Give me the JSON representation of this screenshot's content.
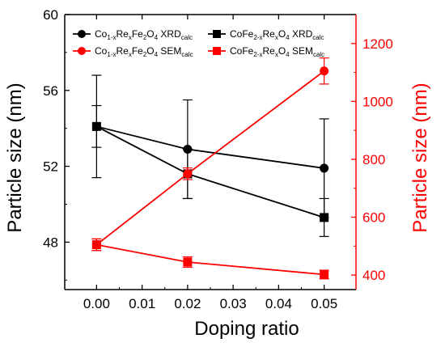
{
  "chart_data": {
    "type": "line",
    "xlabel": "Doping ratio",
    "ylabel_left": "Particle size (nm)",
    "ylabel_right": "Particle size (nm)",
    "x": [
      0.0,
      0.02,
      0.05
    ],
    "xlim": [
      -0.007,
      0.057
    ],
    "x_ticks": [
      0.0,
      0.01,
      0.02,
      0.03,
      0.04,
      0.05
    ],
    "x_tick_labels": [
      "0.00",
      "0.01",
      "0.02",
      "0.03",
      "0.04",
      "0.05"
    ],
    "ylim_left": [
      45.5,
      60
    ],
    "y_ticks_left": [
      48,
      52,
      56,
      60
    ],
    "ylim_right": [
      350,
      1300
    ],
    "y_ticks_right": [
      400,
      600,
      800,
      1000,
      1200
    ],
    "grid": false,
    "legend_position": "top",
    "colors": {
      "black": "#000000",
      "red": "#ff0000"
    },
    "series": [
      {
        "legend_main": "Co",
        "legend_sub1": "1-x",
        "legend_mid": "Re",
        "legend_sub2": "x",
        "legend_rest": "Fe",
        "legend_sub3": "2",
        "legend_tail": "O",
        "legend_sub4": "4",
        "legend_suffix": " XRD",
        "legend_suffix_sub": "calc",
        "axis": "left",
        "color": "#000000",
        "marker": "circle",
        "values": [
          54.1,
          52.9,
          51.9
        ],
        "errors": [
          2.7,
          2.6,
          2.6
        ]
      },
      {
        "legend_main": "CoFe",
        "legend_sub1": "2-x",
        "legend_mid": "Re",
        "legend_sub2": "x",
        "legend_rest": "O",
        "legend_sub3": "4",
        "legend_tail": "",
        "legend_sub4": "",
        "legend_suffix": " XRD",
        "legend_suffix_sub": "calc",
        "axis": "left",
        "color": "#000000",
        "marker": "square",
        "values": [
          54.1,
          51.6,
          49.3
        ],
        "errors": [
          1.1,
          1.3,
          1.0
        ]
      },
      {
        "legend_main": "Co",
        "legend_sub1": "1-x",
        "legend_mid": "Re",
        "legend_sub2": "x",
        "legend_rest": "Fe",
        "legend_sub3": "2",
        "legend_tail": "O",
        "legend_sub4": "4",
        "legend_suffix": " SEM",
        "legend_suffix_sub": "calc",
        "axis": "right",
        "color": "#ff0000",
        "marker": "circle",
        "values": [
          505,
          750,
          1105
        ],
        "errors": [
          20,
          20,
          45
        ]
      },
      {
        "legend_main": "CoFe",
        "legend_sub1": "2-x",
        "legend_mid": "Re",
        "legend_sub2": "x",
        "legend_rest": "O",
        "legend_sub3": "4",
        "legend_tail": "",
        "legend_sub4": "",
        "legend_suffix": " SEM",
        "legend_suffix_sub": "calc",
        "axis": "right",
        "color": "#ff0000",
        "marker": "square",
        "values": [
          505,
          445,
          402
        ],
        "errors": [
          20,
          18,
          15
        ]
      }
    ]
  }
}
